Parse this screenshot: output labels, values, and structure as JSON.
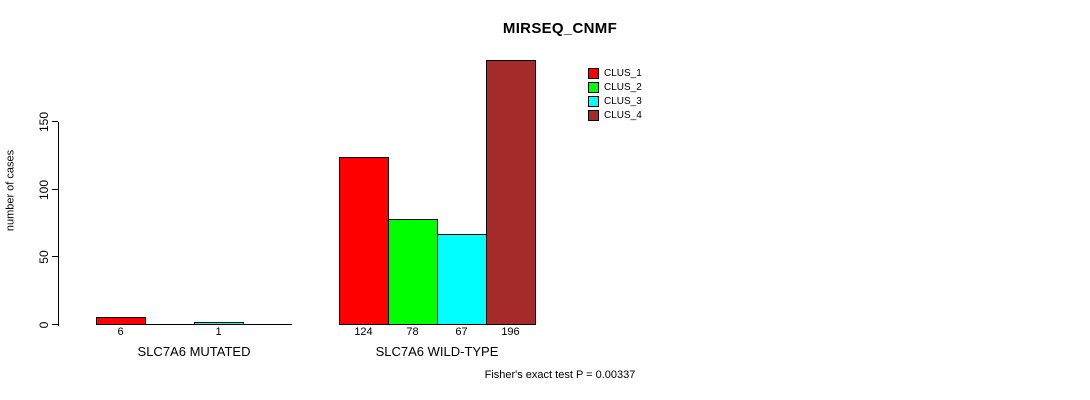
{
  "title": "MIRSEQ_CNMF",
  "y_axis": {
    "label": "number of cases",
    "tick_labels": [
      "0",
      "50",
      "100",
      "150"
    ]
  },
  "legend": {
    "items": [
      {
        "label": "CLUS_1",
        "color": "#FF0000"
      },
      {
        "label": "CLUS_2",
        "color": "#00FF00"
      },
      {
        "label": "CLUS_3",
        "color": "#00FFFF"
      },
      {
        "label": "CLUS_4",
        "color": "#A52A2A"
      }
    ]
  },
  "footer": {
    "stat_text": "Fisher's exact test P = 0.00337"
  },
  "chart_data": {
    "type": "bar",
    "title": "MIRSEQ_CNMF",
    "xlabel": "",
    "ylabel": "number of cases",
    "categories": [
      "SLC7A6 MUTATED",
      "SLC7A6 WILD-TYPE"
    ],
    "series": [
      {
        "name": "CLUS_1",
        "color": "#FF0000",
        "values": [
          6,
          124
        ]
      },
      {
        "name": "CLUS_2",
        "color": "#00FF00",
        "values": [
          0,
          78
        ]
      },
      {
        "name": "CLUS_3",
        "color": "#00FFFF",
        "values": [
          1,
          67
        ]
      },
      {
        "name": "CLUS_4",
        "color": "#A52A2A",
        "values": [
          0,
          196
        ]
      }
    ],
    "yticks": [
      0,
      50,
      100,
      150
    ],
    "ylim": [
      0,
      200
    ],
    "bar_value_labels_shown": [
      "6",
      "1",
      "124",
      "78",
      "67",
      "196"
    ],
    "zero_value_bars_drawn_as_flat_lines": true,
    "grid": false,
    "legend_position": "top-right",
    "annotation": "Fisher's exact test P = 0.00337"
  }
}
